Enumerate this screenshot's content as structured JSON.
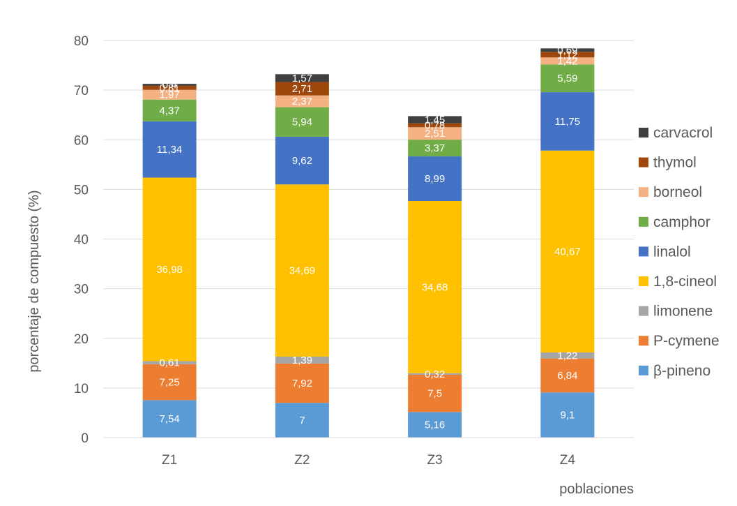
{
  "chart_data": {
    "type": "bar",
    "stacked": true,
    "title": "",
    "xlabel": "poblaciones",
    "ylabel": "porcentaje de compuesto (%)",
    "ylim": [
      0,
      80
    ],
    "yticks": [
      "0",
      "10",
      "20",
      "30",
      "40",
      "50",
      "60",
      "70",
      "80"
    ],
    "grid": true,
    "legend_position": "right",
    "categories": [
      "Z1",
      "Z2",
      "Z3",
      "Z4"
    ],
    "series": [
      {
        "name": "β-pineno",
        "color": "#5B9BD5",
        "values": [
          7.54,
          7,
          5.16,
          9.1
        ],
        "labels": [
          "7,54",
          "7",
          "5,16",
          "9,1"
        ]
      },
      {
        "name": "P-cymene",
        "color": "#ED7D31",
        "values": [
          7.25,
          7.92,
          7.5,
          6.84
        ],
        "labels": [
          "7,25",
          "7,92",
          "7,5",
          "6,84"
        ]
      },
      {
        "name": "limonene",
        "color": "#A5A5A5",
        "values": [
          0.61,
          1.39,
          0.32,
          1.22
        ],
        "labels": [
          "0,61",
          "1,39",
          "0,32",
          "1,22"
        ]
      },
      {
        "name": "1,8-cineol",
        "color": "#FFC000",
        "values": [
          36.98,
          34.69,
          34.68,
          40.67
        ],
        "labels": [
          "36,98",
          "34,69",
          "34,68",
          "40,67"
        ]
      },
      {
        "name": "linalol",
        "color": "#4472C4",
        "values": [
          11.34,
          9.62,
          8.99,
          11.75
        ],
        "labels": [
          "11,34",
          "9,62",
          "8,99",
          "11,75"
        ]
      },
      {
        "name": "camphor",
        "color": "#70AD47",
        "values": [
          4.37,
          5.94,
          3.37,
          5.59
        ],
        "labels": [
          "4,37",
          "5,94",
          "3,37",
          "5,59"
        ]
      },
      {
        "name": "borneol",
        "color": "#F4B183",
        "values": [
          1.97,
          2.37,
          2.51,
          1.42
        ],
        "labels": [
          "1,97",
          "2,37",
          "2,51",
          "1,42"
        ]
      },
      {
        "name": "thymol",
        "color": "#9E480E",
        "values": [
          0.81,
          2.71,
          0.78,
          1.12
        ],
        "labels": [
          "0,81",
          "2,71",
          "0,78",
          "1,12"
        ]
      },
      {
        "name": "carvacrol",
        "color": "#404040",
        "values": [
          0.4,
          1.57,
          1.45,
          0.69
        ],
        "labels": [
          "0,4",
          "1,57",
          "1,45",
          "0,69"
        ]
      }
    ],
    "legend_order": [
      "carvacrol",
      "thymol",
      "borneol",
      "camphor",
      "linalol",
      "1,8-cineol",
      "limonene",
      "P-cymene",
      "β-pineno"
    ]
  }
}
